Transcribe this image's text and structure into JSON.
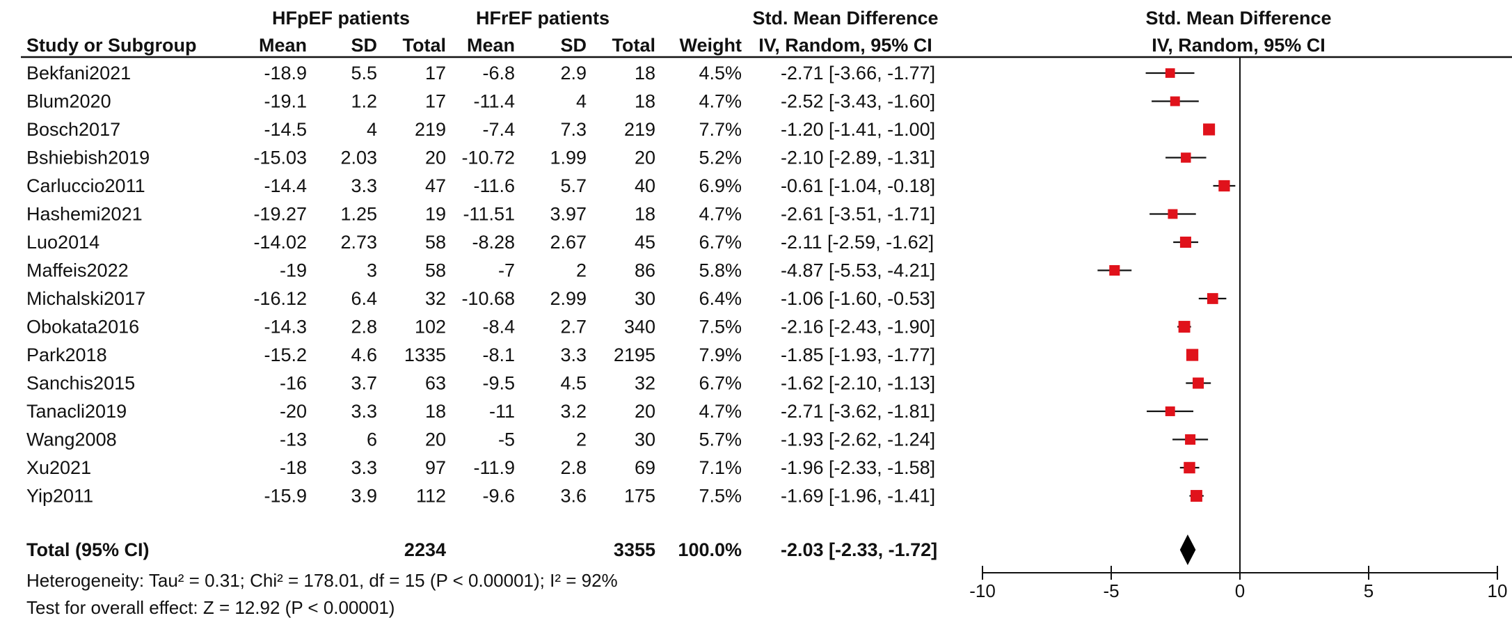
{
  "headers": {
    "group1": "HFpEF patients",
    "group2": "HFrEF patients",
    "effect": "Std. Mean Difference",
    "study": "Study or Subgroup",
    "mean": "Mean",
    "sd": "SD",
    "total": "Total",
    "weight": "Weight",
    "method": "IV, Random, 95% CI",
    "plot_title": "Std. Mean Difference",
    "plot_method": "IV, Random, 95% CI"
  },
  "total_row": {
    "label": "Total (95% CI)",
    "n1": "2234",
    "n2": "3355",
    "weight": "100.0%",
    "ci_text": "-2.03 [-2.33, -1.72]"
  },
  "footer": {
    "heterogeneity": "Heterogeneity: Tau² = 0.31; Chi² = 178.01, df = 15 (P < 0.00001); I² = 92%",
    "overall": "Test for overall effect: Z = 12.92 (P < 0.00001)"
  },
  "colors": {
    "marker": "#e0121b",
    "line": "#111111",
    "diamond": "#000000"
  },
  "chart_data": {
    "type": "forest",
    "xlim": [
      -10,
      10
    ],
    "ticks": [
      -10,
      -5,
      0,
      5,
      10
    ],
    "reference_line": 0,
    "studies": [
      {
        "name": "Bekfani2021",
        "m1": "-18.9",
        "sd1": "5.5",
        "n1": "17",
        "m2": "-6.8",
        "sd2": "2.9",
        "n2": "18",
        "weight": "4.5%",
        "ci_text": "-2.71 [-3.66, -1.77]",
        "est": -2.71,
        "lo": -3.66,
        "hi": -1.77,
        "w": 4.5
      },
      {
        "name": "Blum2020",
        "m1": "-19.1",
        "sd1": "1.2",
        "n1": "17",
        "m2": "-11.4",
        "sd2": "4",
        "n2": "18",
        "weight": "4.7%",
        "ci_text": "-2.52 [-3.43, -1.60]",
        "est": -2.52,
        "lo": -3.43,
        "hi": -1.6,
        "w": 4.7
      },
      {
        "name": "Bosch2017",
        "m1": "-14.5",
        "sd1": "4",
        "n1": "219",
        "m2": "-7.4",
        "sd2": "7.3",
        "n2": "219",
        "weight": "7.7%",
        "ci_text": "-1.20 [-1.41, -1.00]",
        "est": -1.2,
        "lo": -1.41,
        "hi": -1.0,
        "w": 7.7
      },
      {
        "name": "Bshiebish2019",
        "m1": "-15.03",
        "sd1": "2.03",
        "n1": "20",
        "m2": "-10.72",
        "sd2": "1.99",
        "n2": "20",
        "weight": "5.2%",
        "ci_text": "-2.10 [-2.89, -1.31]",
        "est": -2.1,
        "lo": -2.89,
        "hi": -1.31,
        "w": 5.2
      },
      {
        "name": "Carluccio2011",
        "m1": "-14.4",
        "sd1": "3.3",
        "n1": "47",
        "m2": "-11.6",
        "sd2": "5.7",
        "n2": "40",
        "weight": "6.9%",
        "ci_text": "-0.61 [-1.04, -0.18]",
        "est": -0.61,
        "lo": -1.04,
        "hi": -0.18,
        "w": 6.9
      },
      {
        "name": "Hashemi2021",
        "m1": "-19.27",
        "sd1": "1.25",
        "n1": "19",
        "m2": "-11.51",
        "sd2": "3.97",
        "n2": "18",
        "weight": "4.7%",
        "ci_text": "-2.61 [-3.51, -1.71]",
        "est": -2.61,
        "lo": -3.51,
        "hi": -1.71,
        "w": 4.7
      },
      {
        "name": "Luo2014",
        "m1": "-14.02",
        "sd1": "2.73",
        "n1": "58",
        "m2": "-8.28",
        "sd2": "2.67",
        "n2": "45",
        "weight": "6.7%",
        "ci_text": "-2.11 [-2.59, -1.62]",
        "est": -2.11,
        "lo": -2.59,
        "hi": -1.62,
        "w": 6.7
      },
      {
        "name": "Maffeis2022",
        "m1": "-19",
        "sd1": "3",
        "n1": "58",
        "m2": "-7",
        "sd2": "2",
        "n2": "86",
        "weight": "5.8%",
        "ci_text": "-4.87 [-5.53, -4.21]",
        "est": -4.87,
        "lo": -5.53,
        "hi": -4.21,
        "w": 5.8
      },
      {
        "name": "Michalski2017",
        "m1": "-16.12",
        "sd1": "6.4",
        "n1": "32",
        "m2": "-10.68",
        "sd2": "2.99",
        "n2": "30",
        "weight": "6.4%",
        "ci_text": "-1.06 [-1.60, -0.53]",
        "est": -1.06,
        "lo": -1.6,
        "hi": -0.53,
        "w": 6.4
      },
      {
        "name": "Obokata2016",
        "m1": "-14.3",
        "sd1": "2.8",
        "n1": "102",
        "m2": "-8.4",
        "sd2": "2.7",
        "n2": "340",
        "weight": "7.5%",
        "ci_text": "-2.16 [-2.43, -1.90]",
        "est": -2.16,
        "lo": -2.43,
        "hi": -1.9,
        "w": 7.5
      },
      {
        "name": "Park2018",
        "m1": "-15.2",
        "sd1": "4.6",
        "n1": "1335",
        "m2": "-8.1",
        "sd2": "3.3",
        "n2": "2195",
        "weight": "7.9%",
        "ci_text": "-1.85 [-1.93, -1.77]",
        "est": -1.85,
        "lo": -1.93,
        "hi": -1.77,
        "w": 7.9
      },
      {
        "name": "Sanchis2015",
        "m1": "-16",
        "sd1": "3.7",
        "n1": "63",
        "m2": "-9.5",
        "sd2": "4.5",
        "n2": "32",
        "weight": "6.7%",
        "ci_text": "-1.62 [-2.10, -1.13]",
        "est": -1.62,
        "lo": -2.1,
        "hi": -1.13,
        "w": 6.7
      },
      {
        "name": "Tanacli2019",
        "m1": "-20",
        "sd1": "3.3",
        "n1": "18",
        "m2": "-11",
        "sd2": "3.2",
        "n2": "20",
        "weight": "4.7%",
        "ci_text": "-2.71 [-3.62, -1.81]",
        "est": -2.71,
        "lo": -3.62,
        "hi": -1.81,
        "w": 4.7
      },
      {
        "name": "Wang2008",
        "m1": "-13",
        "sd1": "6",
        "n1": "20",
        "m2": "-5",
        "sd2": "2",
        "n2": "30",
        "weight": "5.7%",
        "ci_text": "-1.93 [-2.62, -1.24]",
        "est": -1.93,
        "lo": -2.62,
        "hi": -1.24,
        "w": 5.7
      },
      {
        "name": "Xu2021",
        "m1": "-18",
        "sd1": "3.3",
        "n1": "97",
        "m2": "-11.9",
        "sd2": "2.8",
        "n2": "69",
        "weight": "7.1%",
        "ci_text": "-1.96 [-2.33, -1.58]",
        "est": -1.96,
        "lo": -2.33,
        "hi": -1.58,
        "w": 7.1
      },
      {
        "name": "Yip2011",
        "m1": "-15.9",
        "sd1": "3.9",
        "n1": "112",
        "m2": "-9.6",
        "sd2": "3.6",
        "n2": "175",
        "weight": "7.5%",
        "ci_text": "-1.69 [-1.96, -1.41]",
        "est": -1.69,
        "lo": -1.96,
        "hi": -1.41,
        "w": 7.5
      }
    ],
    "overall": {
      "est": -2.03,
      "lo": -2.33,
      "hi": -1.72
    }
  }
}
